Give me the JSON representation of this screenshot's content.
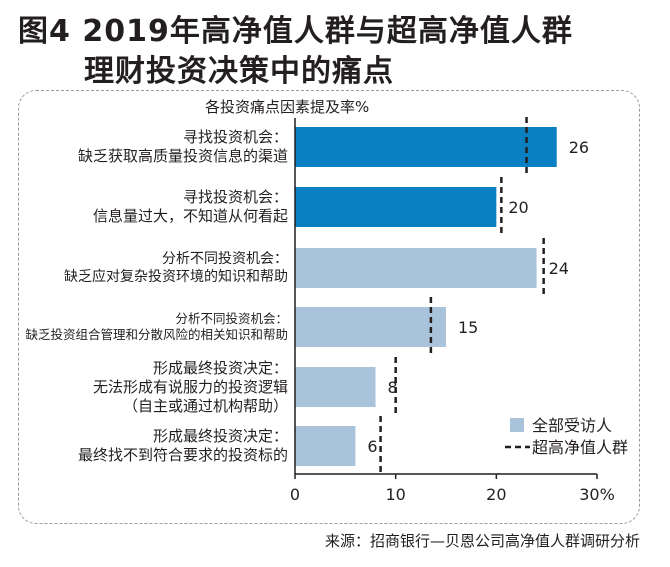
{
  "title": {
    "line1": "图4  2019年高净值人群与超高净值人群",
    "line2": "理财投资决策中的痛点"
  },
  "source": "来源：招商银行—贝恩公司高净值人群调研分析",
  "colors": {
    "dark_blue": "#0a7fc2",
    "light_blue": "#a9c4da",
    "text": "#231f20",
    "axis": "#231f20"
  },
  "chart_data": {
    "type": "bar",
    "orientation": "horizontal",
    "title": "各投资痛点因素提及率%",
    "xlim": [
      0,
      30
    ],
    "xticks": [
      "0",
      "10",
      "20",
      "30%"
    ],
    "categories": [
      [
        "寻找投资机会：",
        "缺乏获取高质量投资信息的渠道"
      ],
      [
        "寻找投资机会：",
        "信息量过大，不知道从何看起"
      ],
      [
        "分析不同投资机会：",
        "缺乏应对复杂投资环境的知识和帮助"
      ],
      [
        "分析不同投资机会：",
        "缺乏投资组合管理和分散风险的相关知识和帮助"
      ],
      [
        "形成最终投资决定：",
        "无法形成有说服力的投资逻辑",
        "（自主或通过机构帮助）"
      ],
      [
        "形成最终投资决定：",
        "最终找不到符合要求的投资标的"
      ]
    ],
    "series": [
      {
        "name": "全部受访人",
        "type": "bar",
        "values": [
          26,
          20,
          24,
          15,
          8,
          6
        ]
      },
      {
        "name": "超高净值人群",
        "type": "dashed-marker",
        "values": [
          23,
          20.5,
          24.7,
          13.5,
          10,
          8.5
        ]
      }
    ],
    "bar_colors": [
      "dark",
      "dark",
      "light",
      "light",
      "light",
      "light"
    ],
    "data_labels": [
      "26",
      "20",
      "24",
      "15",
      "8",
      "6"
    ],
    "legend": [
      "全部受访人",
      "超高净值人群"
    ]
  }
}
